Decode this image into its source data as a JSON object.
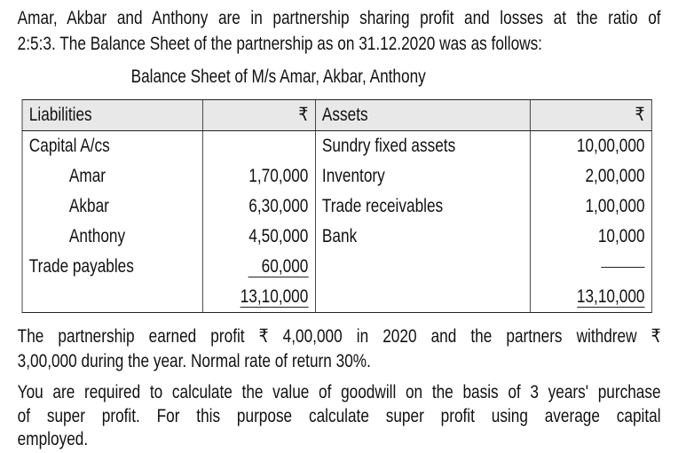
{
  "intro_lines": [
    "Amar, Akbar and Anthony are in partnership sharing profit and losses at the ratio of",
    "2:5:3. The Balance Sheet of the partnership as on 31.12.2020 was as follows:"
  ],
  "table_title": "Balance Sheet of M/s Amar, Akbar, Anthony",
  "table": {
    "headers": {
      "liabilities": "Liabilities",
      "amount1": "₹",
      "assets": "Assets",
      "amount2": "₹"
    },
    "rows": [
      {
        "liability": "Capital A/cs",
        "l_amt": "",
        "asset": "Sundry fixed assets",
        "a_amt": "10,00,000"
      },
      {
        "liability": "Amar",
        "l_amt": "1,70,000",
        "asset": "Inventory",
        "a_amt": "2,00,000"
      },
      {
        "liability": "Akbar",
        "l_amt": "6,30,000",
        "asset": "Trade receivables",
        "a_amt": "1,00,000"
      },
      {
        "liability": "Anthony",
        "l_amt": "4,50,000",
        "asset": "Bank",
        "a_amt": "10,000"
      },
      {
        "liability": "Trade payables",
        "l_amt": "60,000",
        "asset": "",
        "a_amt": ""
      }
    ],
    "totals": {
      "liabilities": "13,10,000",
      "assets": "13,10,000"
    }
  },
  "para2_lines": [
    "The partnership earned profit ₹ 4,00,000 in 2020 and the partners withdrew ₹",
    "3,00,000 during the year. Normal rate of return 30%."
  ],
  "para3_lines": [
    "You are required to calculate the value of goodwill on the basis of 3 years' purchase",
    "of super profit. For this purpose calculate super profit using average capital",
    "employed."
  ]
}
